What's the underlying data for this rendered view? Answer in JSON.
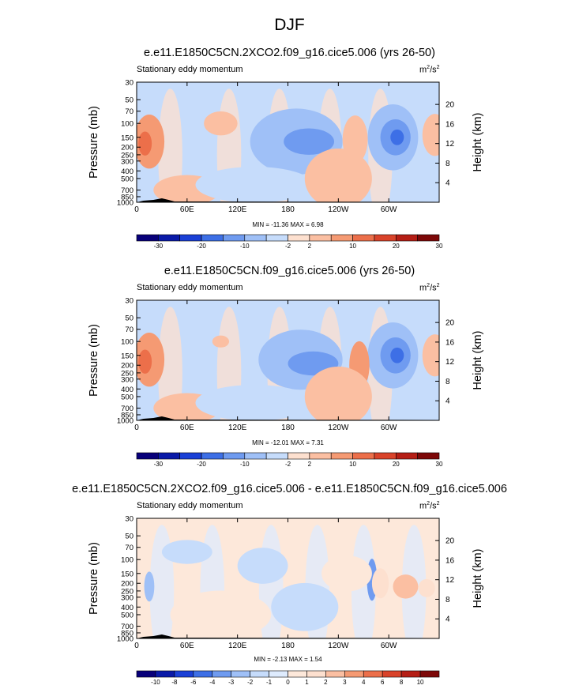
{
  "figure": {
    "title": "DJF"
  },
  "colors": {
    "standard": [
      "#08007a",
      "#0a1aa8",
      "#1a40d6",
      "#3d6fe6",
      "#6f9bf0",
      "#9fc0f7",
      "#c6dcfb",
      "#fde0cf",
      "#fbbfa2",
      "#f59a73",
      "#ec6f4a",
      "#d9432a",
      "#b51e15",
      "#7d0808"
    ],
    "diff": [
      "#08007a",
      "#0a1aa8",
      "#1a40d6",
      "#3d6fe6",
      "#6f9bf0",
      "#9fc0f7",
      "#c6dcfb",
      "#deebfd",
      "#fde8da",
      "#fde0cf",
      "#fbbfa2",
      "#f59a73",
      "#ec6f4a",
      "#d9432a",
      "#b51e15",
      "#7d0808"
    ],
    "land": "#000000"
  },
  "chart_data": [
    {
      "type": "heatmap",
      "title": "e.e11.E1850C5CN.2XCO2.f09_g16.cice5.006 (yrs 26-50)",
      "variable_label": "Stationary eddy momentum",
      "units_base": "m",
      "units_exp1": "2",
      "units_mid": "/s",
      "units_exp2": "2",
      "ylabel_left": "Pressure (mb)",
      "ylabel_right": "Height (km)",
      "x_ticks": [
        {
          "lon": 0,
          "label": "0"
        },
        {
          "lon": 60,
          "label": "60E"
        },
        {
          "lon": 120,
          "label": "120E"
        },
        {
          "lon": 180,
          "label": "180"
        },
        {
          "lon": 240,
          "label": "120W"
        },
        {
          "lon": 300,
          "label": "60W"
        }
      ],
      "y_ticks": [
        {
          "p": 30,
          "label": "30"
        },
        {
          "p": 50,
          "label": "50"
        },
        {
          "p": 70,
          "label": "70"
        },
        {
          "p": 100,
          "label": "100"
        },
        {
          "p": 150,
          "label": "150"
        },
        {
          "p": 200,
          "label": "200"
        },
        {
          "p": 250,
          "label": "250"
        },
        {
          "p": 300,
          "label": "300"
        },
        {
          "p": 400,
          "label": "400"
        },
        {
          "p": 500,
          "label": "500"
        },
        {
          "p": 700,
          "label": "700"
        },
        {
          "p": 850,
          "label": "850"
        },
        {
          "p": 1000,
          "label": "1000"
        }
      ],
      "height_ticks": [
        {
          "km": 4,
          "label": "4"
        },
        {
          "km": 8,
          "label": "8"
        },
        {
          "km": 12,
          "label": "12"
        },
        {
          "km": 16,
          "label": "16"
        },
        {
          "km": 20,
          "label": "20"
        }
      ],
      "x_range": [
        0,
        360
      ],
      "y_range": [
        30,
        1000
      ],
      "y_scale": "log",
      "min_label": "MIN = -11.36  MAX =   6.98",
      "levels": [
        "-30",
        "-20",
        "-10",
        "-2",
        "2",
        "10",
        "20",
        "30"
      ],
      "level_values": [
        -35,
        -30,
        -25,
        -20,
        -15,
        -10,
        -5,
        -2,
        2,
        5,
        10,
        15,
        20,
        25,
        30
      ],
      "palette": "standard"
    },
    {
      "type": "heatmap",
      "title": "e.e11.E1850C5CN.f09_g16.cice5.006 (yrs 26-50)",
      "variable_label": "Stationary eddy momentum",
      "units_base": "m",
      "units_exp1": "2",
      "units_mid": "/s",
      "units_exp2": "2",
      "ylabel_left": "Pressure (mb)",
      "ylabel_right": "Height (km)",
      "x_ticks": [
        {
          "lon": 0,
          "label": "0"
        },
        {
          "lon": 60,
          "label": "60E"
        },
        {
          "lon": 120,
          "label": "120E"
        },
        {
          "lon": 180,
          "label": "180"
        },
        {
          "lon": 240,
          "label": "120W"
        },
        {
          "lon": 300,
          "label": "60W"
        }
      ],
      "y_ticks": [
        {
          "p": 30,
          "label": "30"
        },
        {
          "p": 50,
          "label": "50"
        },
        {
          "p": 70,
          "label": "70"
        },
        {
          "p": 100,
          "label": "100"
        },
        {
          "p": 150,
          "label": "150"
        },
        {
          "p": 200,
          "label": "200"
        },
        {
          "p": 250,
          "label": "250"
        },
        {
          "p": 300,
          "label": "300"
        },
        {
          "p": 400,
          "label": "400"
        },
        {
          "p": 500,
          "label": "500"
        },
        {
          "p": 700,
          "label": "700"
        },
        {
          "p": 850,
          "label": "850"
        },
        {
          "p": 1000,
          "label": "1000"
        }
      ],
      "height_ticks": [
        {
          "km": 4,
          "label": "4"
        },
        {
          "km": 8,
          "label": "8"
        },
        {
          "km": 12,
          "label": "12"
        },
        {
          "km": 16,
          "label": "16"
        },
        {
          "km": 20,
          "label": "20"
        }
      ],
      "x_range": [
        0,
        360
      ],
      "y_range": [
        30,
        1000
      ],
      "y_scale": "log",
      "min_label": "MIN = -12.01  MAX =   7.31",
      "levels": [
        "-30",
        "-20",
        "-10",
        "-2",
        "2",
        "10",
        "20",
        "30"
      ],
      "level_values": [
        -35,
        -30,
        -25,
        -20,
        -15,
        -10,
        -5,
        -2,
        2,
        5,
        10,
        15,
        20,
        25,
        30
      ],
      "palette": "standard"
    },
    {
      "type": "heatmap",
      "title": "e.e11.E1850C5CN.2XCO2.f09_g16.cice5.006 - e.e11.E1850C5CN.f09_g16.cice5.006",
      "variable_label": "Stationary eddy momentum",
      "units_base": "m",
      "units_exp1": "2",
      "units_mid": "/s",
      "units_exp2": "2",
      "ylabel_left": "Pressure (mb)",
      "ylabel_right": "Height (km)",
      "x_ticks": [
        {
          "lon": 0,
          "label": "0"
        },
        {
          "lon": 60,
          "label": "60E"
        },
        {
          "lon": 120,
          "label": "120E"
        },
        {
          "lon": 180,
          "label": "180"
        },
        {
          "lon": 240,
          "label": "120W"
        },
        {
          "lon": 300,
          "label": "60W"
        }
      ],
      "y_ticks": [
        {
          "p": 30,
          "label": "30"
        },
        {
          "p": 50,
          "label": "50"
        },
        {
          "p": 70,
          "label": "70"
        },
        {
          "p": 100,
          "label": "100"
        },
        {
          "p": 150,
          "label": "150"
        },
        {
          "p": 200,
          "label": "200"
        },
        {
          "p": 250,
          "label": "250"
        },
        {
          "p": 300,
          "label": "300"
        },
        {
          "p": 400,
          "label": "400"
        },
        {
          "p": 500,
          "label": "500"
        },
        {
          "p": 700,
          "label": "700"
        },
        {
          "p": 850,
          "label": "850"
        },
        {
          "p": 1000,
          "label": "1000"
        }
      ],
      "height_ticks": [
        {
          "km": 4,
          "label": "4"
        },
        {
          "km": 8,
          "label": "8"
        },
        {
          "km": 12,
          "label": "12"
        },
        {
          "km": 16,
          "label": "16"
        },
        {
          "km": 20,
          "label": "20"
        }
      ],
      "x_range": [
        0,
        360
      ],
      "y_range": [
        30,
        1000
      ],
      "y_scale": "log",
      "min_label": "MIN =  -2.13  MAX =   1.54",
      "levels": [
        "-10",
        "-8",
        "-6",
        "-4",
        "-3",
        "-2",
        "-1",
        "0",
        "1",
        "2",
        "3",
        "4",
        "6",
        "8",
        "10"
      ],
      "level_values": [
        -10,
        -8,
        -6,
        -4,
        -3,
        -2,
        -1,
        0,
        1,
        2,
        3,
        4,
        6,
        8,
        10
      ],
      "palette": "diff"
    }
  ]
}
